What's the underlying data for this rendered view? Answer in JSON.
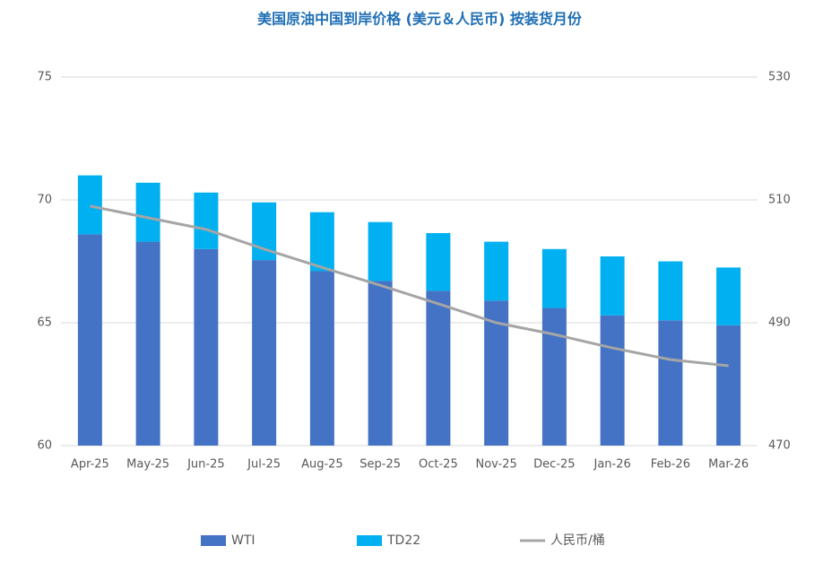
{
  "chart_data": {
    "type": "bar",
    "title": "美国原油中国到岸价格 (美元＆人民币) 按装货月份",
    "categories": [
      "Apr-25",
      "May-25",
      "Jun-25",
      "Jul-25",
      "Aug-25",
      "Sep-25",
      "Oct-25",
      "Nov-25",
      "Dec-25",
      "Jan-26",
      "Feb-26",
      "Mar-26"
    ],
    "series": [
      {
        "name": "WTI",
        "color": "#4472c4",
        "stack": true,
        "values": [
          68.6,
          68.3,
          68.0,
          67.55,
          67.1,
          66.7,
          66.3,
          65.9,
          65.6,
          65.3,
          65.1,
          64.9
        ]
      },
      {
        "name": "TD22",
        "color": "#00b0f0",
        "stack": true,
        "values": [
          2.4,
          2.4,
          2.3,
          2.35,
          2.4,
          2.4,
          2.35,
          2.4,
          2.4,
          2.4,
          2.4,
          2.35
        ]
      },
      {
        "name": "人民币/桶",
        "color": "#a5a5a5",
        "type": "line",
        "axis": "y2",
        "values": [
          509,
          507.1,
          505.2,
          502,
          499,
          496.1,
          493.1,
          490,
          488.1,
          485.9,
          484,
          483
        ]
      }
    ],
    "ylim": [
      60,
      75
    ],
    "yticks": [
      60,
      65,
      70,
      75
    ],
    "y2lim": [
      470,
      530
    ],
    "y2ticks": [
      470,
      490,
      510,
      530
    ],
    "grid": true,
    "legend": "bottom"
  }
}
